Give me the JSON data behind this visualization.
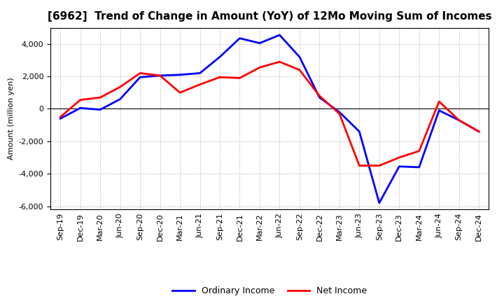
{
  "title": "[6962]  Trend of Change in Amount (YoY) of 12Mo Moving Sum of Incomes",
  "ylabel": "Amount (million yen)",
  "x_labels": [
    "Sep-19",
    "Dec-19",
    "Mar-20",
    "Jun-20",
    "Sep-20",
    "Dec-20",
    "Mar-21",
    "Jun-21",
    "Sep-21",
    "Dec-21",
    "Mar-22",
    "Jun-22",
    "Sep-22",
    "Dec-22",
    "Mar-23",
    "Jun-23",
    "Sep-23",
    "Dec-23",
    "Mar-24",
    "Jun-24",
    "Sep-24",
    "Dec-24"
  ],
  "ordinary_income": [
    -600,
    50,
    -50,
    600,
    1950,
    2050,
    2100,
    2200,
    3200,
    4350,
    4050,
    4550,
    3200,
    700,
    -200,
    -1400,
    -5800,
    -3550,
    -3600,
    -100,
    -700,
    -1400
  ],
  "net_income": [
    -500,
    550,
    700,
    1350,
    2200,
    2050,
    1000,
    1500,
    1950,
    1900,
    2550,
    2900,
    2400,
    800,
    -300,
    -3500,
    -3500,
    -3000,
    -2600,
    450,
    -700,
    -1400
  ],
  "ordinary_color": "#0000ff",
  "net_color": "#ff0000",
  "ylim": [
    -6200,
    5000
  ],
  "yticks": [
    -6000,
    -4000,
    -2000,
    0,
    2000,
    4000
  ],
  "bg_color": "#ffffff",
  "grid_color": "#aaaaaa",
  "legend_ordinary": "Ordinary Income",
  "legend_net": "Net Income",
  "line_width": 2.0,
  "title_fontsize": 11,
  "ylabel_fontsize": 8,
  "tick_fontsize": 8,
  "legend_fontsize": 9
}
